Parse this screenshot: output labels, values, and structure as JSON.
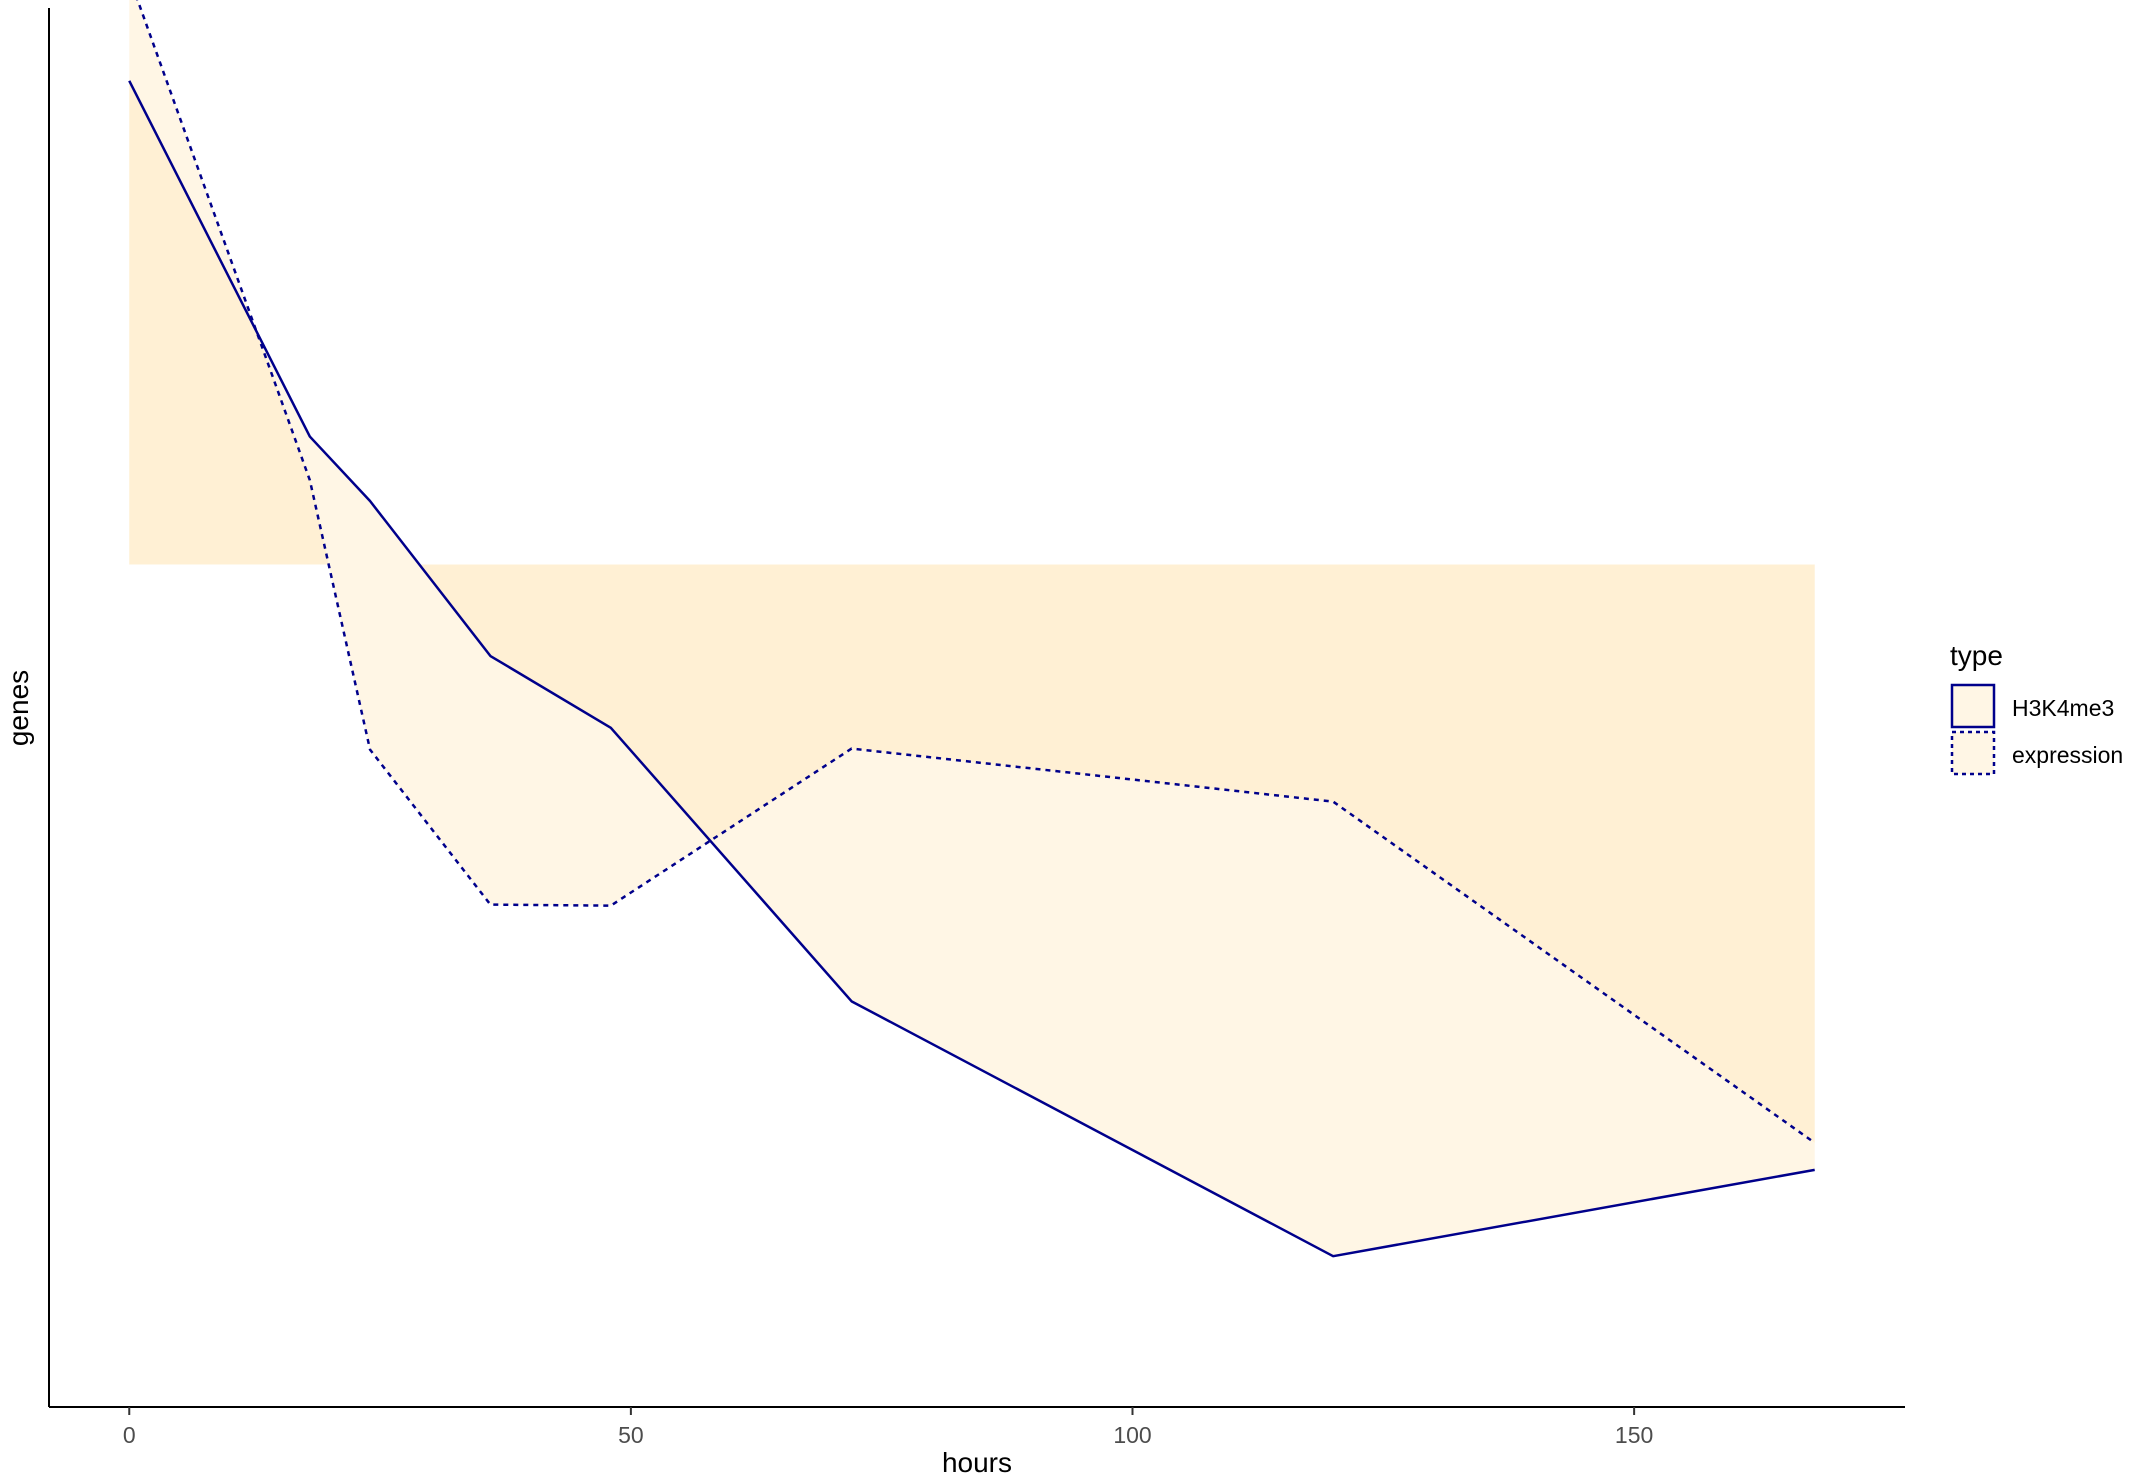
{
  "chart_data": {
    "type": "area",
    "xlabel": "hours",
    "ylabel": "genes",
    "xlim": [
      -8,
      177
    ],
    "ylim": [
      -50,
      1295
    ],
    "x_ticks": [
      0,
      50,
      100,
      150
    ],
    "y_ticks_shown": false,
    "grid": false,
    "legend": {
      "title": "type",
      "position": "right"
    },
    "baseline": 760,
    "series": [
      {
        "name": "H3K4me3",
        "linetype": "solid",
        "x": [
          0,
          18,
          24,
          36,
          48,
          72,
          120,
          168
        ],
        "y": [
          1225,
          883,
          821,
          672,
          603,
          340,
          95,
          178
        ]
      },
      {
        "name": "expression",
        "linetype": "dashed",
        "x": [
          0,
          18,
          24,
          36,
          48,
          72,
          120,
          168
        ],
        "y": [
          1325,
          841,
          582,
          433,
          432,
          583,
          532,
          204
        ]
      }
    ]
  },
  "colors": {
    "line": "#00008b",
    "fill": "#ffe4b5",
    "fill_opacity": 0.35,
    "axis": "#000000"
  }
}
